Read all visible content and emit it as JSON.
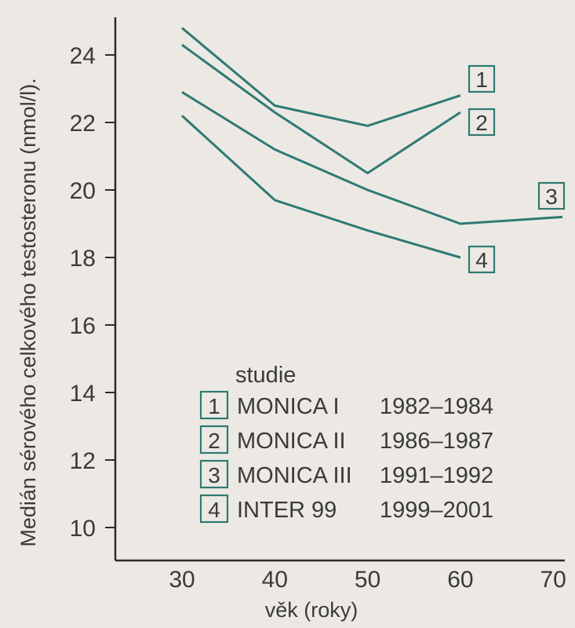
{
  "chart_data": {
    "type": "line",
    "xlabel": "věk (roky)",
    "ylabel": "Medián sérového celkového testosteronu (nmol/l).",
    "xlim": [
      22,
      73
    ],
    "ylim": [
      8.7,
      25.2
    ],
    "x_ticks": [
      30,
      40,
      50,
      60,
      70
    ],
    "y_ticks": [
      10,
      12,
      14,
      16,
      18,
      20,
      22,
      24
    ],
    "line_color": "#2f7a73",
    "box_color": "#2f7a73",
    "grid": false,
    "series": [
      {
        "name": "1",
        "x": [
          30,
          40,
          50,
          60
        ],
        "y": [
          24.8,
          22.5,
          21.9,
          22.8
        ]
      },
      {
        "name": "2",
        "x": [
          30,
          40,
          50,
          60
        ],
        "y": [
          24.3,
          22.3,
          20.5,
          22.3
        ]
      },
      {
        "name": "3",
        "x": [
          30,
          40,
          50,
          60,
          71
        ],
        "y": [
          22.9,
          21.2,
          20.0,
          19.0,
          19.2
        ]
      },
      {
        "name": "4",
        "x": [
          30,
          40,
          50,
          60
        ],
        "y": [
          22.2,
          19.7,
          18.8,
          18.0
        ]
      }
    ],
    "legend": {
      "title": "studie",
      "entries": [
        {
          "num": "1",
          "study": "MONICA I",
          "years": "1982–1984"
        },
        {
          "num": "2",
          "study": "MONICA II",
          "years": "1986–1987"
        },
        {
          "num": "3",
          "study": "MONICA III",
          "years": "1991–1992"
        },
        {
          "num": "4",
          "study": "INTER 99",
          "years": "1999–2001"
        }
      ]
    }
  }
}
